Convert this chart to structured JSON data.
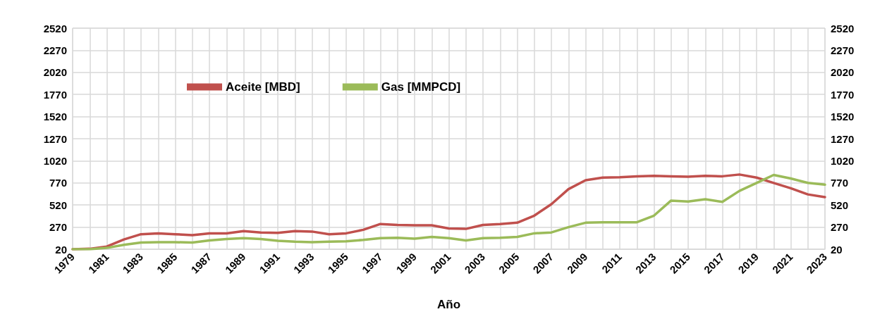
{
  "chart_data": {
    "type": "line",
    "xlabel": "Año",
    "categories": [
      "1979",
      null,
      "1981",
      null,
      "1983",
      null,
      "1985",
      null,
      "1987",
      null,
      "1989",
      null,
      "1991",
      null,
      "1993",
      null,
      "1995",
      null,
      "1997",
      null,
      "1999",
      null,
      "2001",
      null,
      "2003",
      null,
      "2005",
      null,
      "2007",
      null,
      "2009",
      null,
      "2011",
      null,
      "2013",
      null,
      "2015",
      null,
      "2017",
      null,
      "2019",
      null,
      "2021",
      null,
      "2023"
    ],
    "series": [
      {
        "name": "Aceite [MBD]",
        "color": "#c0504d",
        "values": [
          20,
          25,
          50,
          130,
          190,
          200,
          190,
          180,
          200,
          200,
          225,
          210,
          205,
          225,
          220,
          190,
          200,
          240,
          305,
          295,
          290,
          290,
          255,
          250,
          295,
          305,
          320,
          400,
          530,
          700,
          800,
          830,
          835,
          845,
          850,
          845,
          840,
          850,
          845,
          865,
          830,
          770,
          710,
          640,
          610
        ]
      },
      {
        "name": "Gas [MMPCD]",
        "color": "#9bbb59",
        "values": [
          20,
          20,
          35,
          70,
          95,
          100,
          100,
          95,
          120,
          135,
          145,
          135,
          115,
          105,
          100,
          105,
          110,
          125,
          145,
          150,
          140,
          160,
          145,
          120,
          145,
          150,
          160,
          200,
          210,
          270,
          320,
          325,
          325,
          325,
          400,
          570,
          560,
          585,
          555,
          680,
          770,
          860,
          820,
          770,
          750
        ]
      }
    ],
    "ylim": [
      20,
      2520
    ],
    "yticks": [
      20,
      270,
      520,
      770,
      1020,
      1270,
      1520,
      1770,
      2020,
      2270,
      2520
    ],
    "y2lim": [
      20,
      2520
    ],
    "y2ticks": [
      20,
      270,
      520,
      770,
      1020,
      1270,
      1520,
      1770,
      2020,
      2270,
      2520
    ],
    "grid": true,
    "legend": "top left",
    "marker": "none",
    "line_style": "solid"
  }
}
